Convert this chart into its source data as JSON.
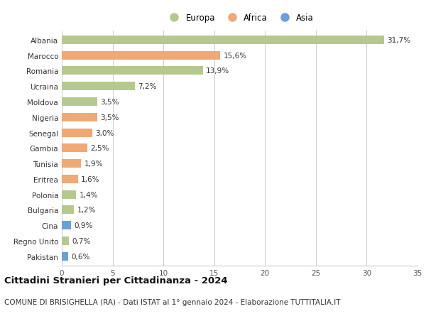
{
  "countries": [
    "Albania",
    "Marocco",
    "Romania",
    "Ucraina",
    "Moldova",
    "Nigeria",
    "Senegal",
    "Gambia",
    "Tunisia",
    "Eritrea",
    "Polonia",
    "Bulgaria",
    "Cina",
    "Regno Unito",
    "Pakistan"
  ],
  "values": [
    31.7,
    15.6,
    13.9,
    7.2,
    3.5,
    3.5,
    3.0,
    2.5,
    1.9,
    1.6,
    1.4,
    1.2,
    0.9,
    0.7,
    0.6
  ],
  "labels": [
    "31,7%",
    "15,6%",
    "13,9%",
    "7,2%",
    "3,5%",
    "3,5%",
    "3,0%",
    "2,5%",
    "1,9%",
    "1,6%",
    "1,4%",
    "1,2%",
    "0,9%",
    "0,7%",
    "0,6%"
  ],
  "continents": [
    "Europa",
    "Africa",
    "Europa",
    "Europa",
    "Europa",
    "Africa",
    "Africa",
    "Africa",
    "Africa",
    "Africa",
    "Europa",
    "Europa",
    "Asia",
    "Europa",
    "Asia"
  ],
  "colors": {
    "Europa": "#b5c98e",
    "Africa": "#f0a875",
    "Asia": "#6a9fd8"
  },
  "xlim": [
    0,
    35
  ],
  "xticks": [
    0,
    5,
    10,
    15,
    20,
    25,
    30,
    35
  ],
  "title": "Cittadini Stranieri per Cittadinanza - 2024",
  "subtitle": "COMUNE DI BRISIGHELLA (RA) - Dati ISTAT al 1° gennaio 2024 - Elaborazione TUTTITALIA.IT",
  "background_color": "#ffffff",
  "grid_color": "#cccccc",
  "bar_height": 0.55,
  "label_fontsize": 7.5,
  "tick_fontsize": 7.5,
  "title_fontsize": 9.5,
  "subtitle_fontsize": 7.5
}
